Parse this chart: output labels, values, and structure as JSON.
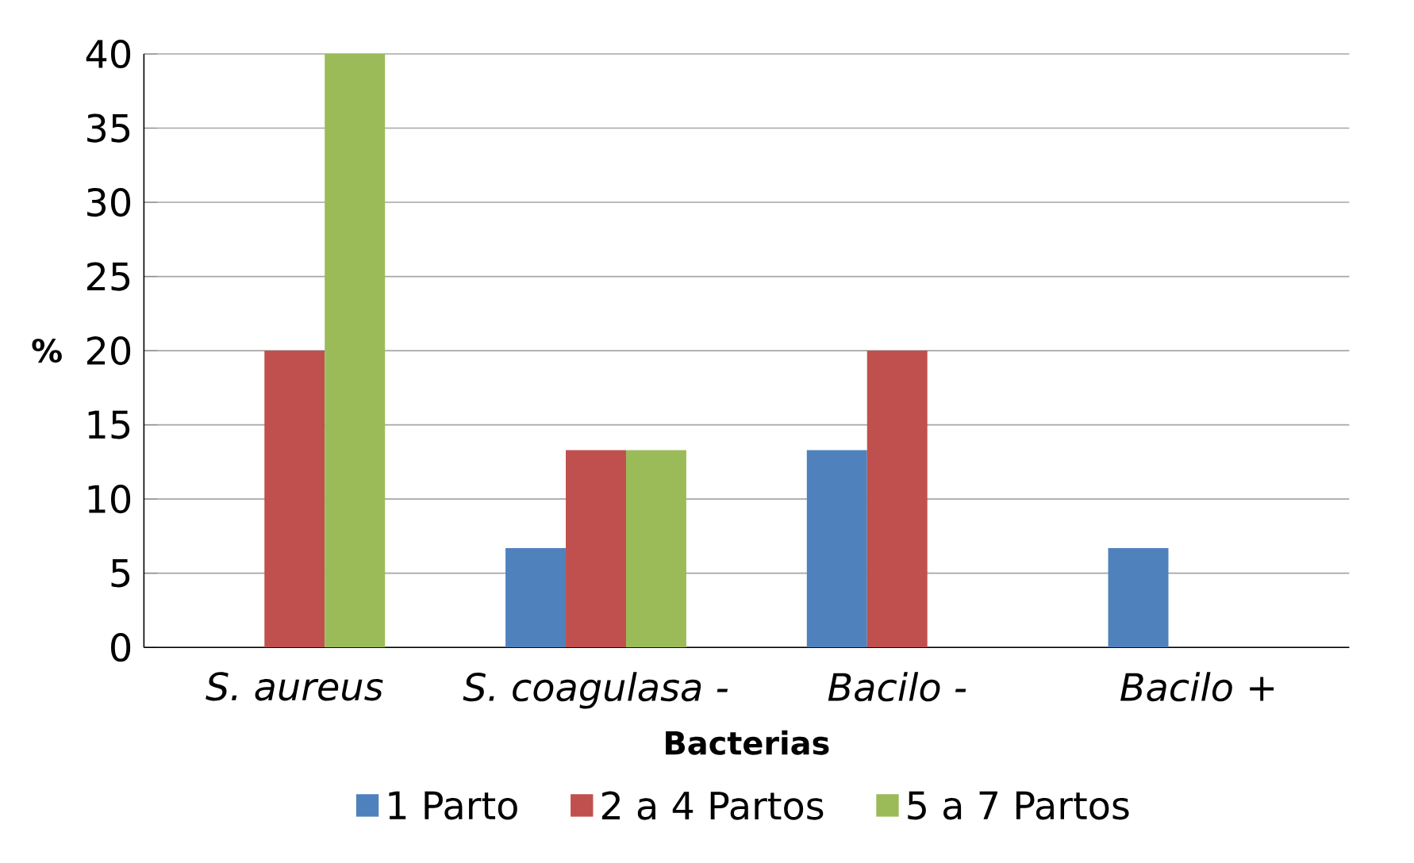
{
  "chart_data": {
    "type": "bar",
    "xlabel": "Bacterias",
    "ylabel": "%",
    "categories": [
      "S. aureus",
      "S. coagulasa -",
      "Bacilo -",
      "Bacilo +"
    ],
    "series": [
      {
        "name": "1 Parto",
        "color": "#4f81bd",
        "values": [
          0,
          6.7,
          13.3,
          6.7
        ]
      },
      {
        "name": "2 a 4 Partos",
        "color": "#c0504d",
        "values": [
          20,
          13.3,
          20,
          0
        ]
      },
      {
        "name": "5 a 7 Partos",
        "color": "#9bbb59",
        "values": [
          40,
          13.3,
          0,
          0
        ]
      }
    ],
    "ylim": [
      0,
      40
    ],
    "yticks": [
      0,
      5,
      10,
      15,
      20,
      25,
      30,
      35,
      40
    ],
    "grid": "y",
    "legend": "bottom"
  }
}
